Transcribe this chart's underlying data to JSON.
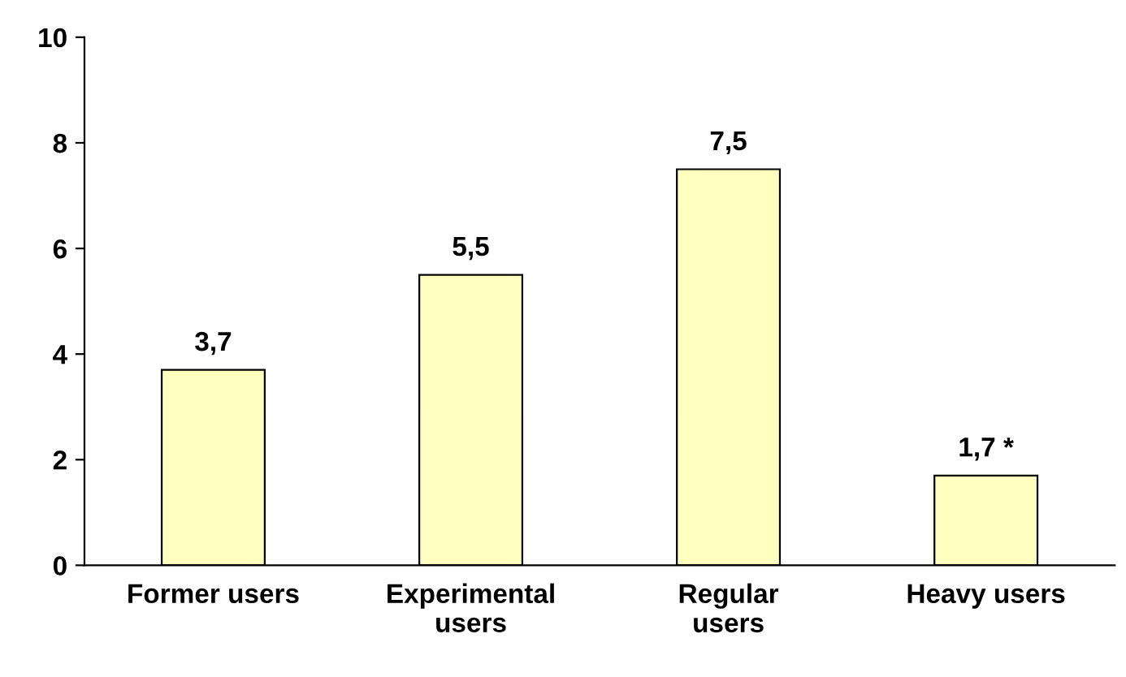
{
  "chart_data": {
    "type": "bar",
    "categories": [
      "Former users",
      "Experimental\nusers",
      "Regular\nusers",
      "Heavy users"
    ],
    "values": [
      3.7,
      5.5,
      7.5,
      1.7
    ],
    "value_labels": [
      "3,7",
      "5,5",
      "7,5",
      "1,7 *"
    ],
    "color": "#ffffc0",
    "ylim": [
      0,
      10
    ],
    "yticks": [
      0,
      2,
      4,
      6,
      8,
      10
    ],
    "grid": false,
    "legend": false
  }
}
